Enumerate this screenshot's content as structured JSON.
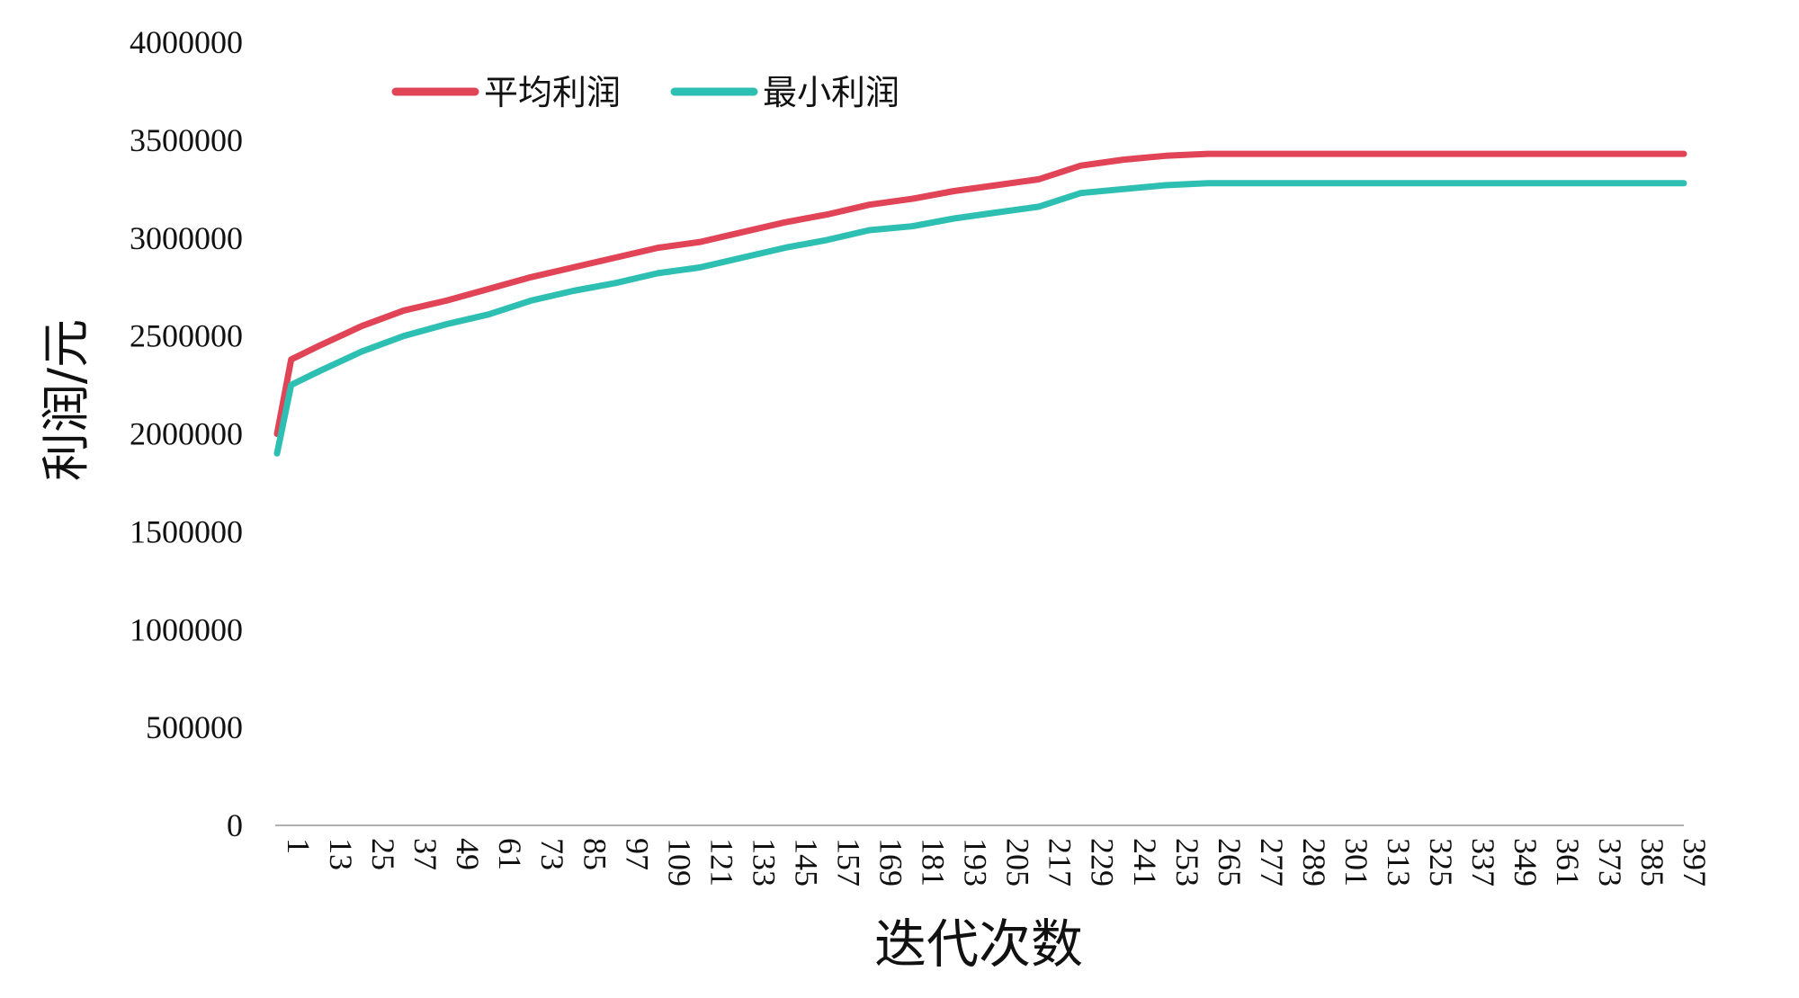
{
  "chart_data": {
    "type": "line",
    "title": "",
    "xlabel": "迭代次数",
    "ylabel": "利润/元",
    "xlim": [
      1,
      400
    ],
    "ylim": [
      0,
      4000000
    ],
    "yticks": [
      0,
      500000,
      1000000,
      1500000,
      2000000,
      2500000,
      3000000,
      3500000,
      4000000
    ],
    "xticks": [
      1,
      13,
      25,
      37,
      49,
      61,
      73,
      85,
      97,
      109,
      121,
      133,
      145,
      157,
      169,
      181,
      193,
      205,
      217,
      229,
      241,
      253,
      265,
      277,
      289,
      301,
      313,
      325,
      337,
      349,
      361,
      373,
      385,
      397
    ],
    "grid": false,
    "legend": "top-left",
    "x": [
      1,
      5,
      13,
      25,
      37,
      49,
      61,
      73,
      85,
      97,
      109,
      121,
      133,
      145,
      157,
      169,
      181,
      193,
      205,
      217,
      229,
      241,
      253,
      265,
      400
    ],
    "series": [
      {
        "name": "平均利润",
        "color": "#e04456",
        "values": [
          2000000,
          2380000,
          2450000,
          2550000,
          2630000,
          2680000,
          2740000,
          2800000,
          2850000,
          2900000,
          2950000,
          2980000,
          3030000,
          3080000,
          3120000,
          3170000,
          3200000,
          3240000,
          3270000,
          3300000,
          3370000,
          3400000,
          3420000,
          3430000,
          3430000
        ]
      },
      {
        "name": "最小利润",
        "color": "#2dbfb1",
        "values": [
          1900000,
          2250000,
          2320000,
          2420000,
          2500000,
          2560000,
          2610000,
          2680000,
          2730000,
          2770000,
          2820000,
          2850000,
          2900000,
          2950000,
          2990000,
          3040000,
          3060000,
          3100000,
          3130000,
          3160000,
          3230000,
          3250000,
          3270000,
          3280000,
          3280000
        ]
      }
    ]
  }
}
